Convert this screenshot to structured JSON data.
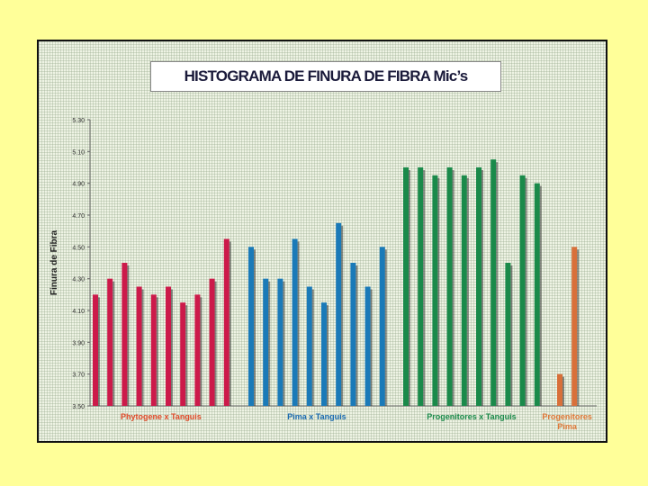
{
  "chart_data": {
    "type": "bar",
    "title": "HISTOGRAMA DE FINURA DE FIBRA Mic’s",
    "ylabel": "Finura de Fibra",
    "ylim": [
      3.5,
      5.3
    ],
    "yticks": [
      "3.50",
      "3.70",
      "3.90",
      "4.10",
      "4.30",
      "4.50",
      "4.70",
      "4.90",
      "5.10",
      "5.30"
    ],
    "grid": false,
    "groups": [
      {
        "label": "Phytogene x Tanguis",
        "color": "#cc1a4a",
        "labelColor": "#e04a2a",
        "values": [
          4.2,
          4.3,
          4.4,
          4.25,
          4.2,
          4.25,
          4.15,
          4.2,
          4.3,
          4.55
        ]
      },
      {
        "label": "Pima x Tanguis",
        "color": "#1a7ab8",
        "labelColor": "#1a6ab0",
        "values": [
          4.5,
          4.3,
          4.3,
          4.55,
          4.25,
          4.15,
          4.65,
          4.4,
          4.25,
          4.5
        ]
      },
      {
        "label": "Progenitores x Tanguis",
        "color": "#1a8a4a",
        "labelColor": "#1a8a4a",
        "values": [
          5.0,
          5.0,
          4.95,
          5.0,
          4.95,
          5.0,
          5.05,
          4.4,
          4.95,
          4.9
        ]
      },
      {
        "label": "Progenitores Pima",
        "color": "#d8703a",
        "labelColor": "#e07a3a",
        "values": [
          3.7,
          4.5
        ]
      }
    ]
  }
}
